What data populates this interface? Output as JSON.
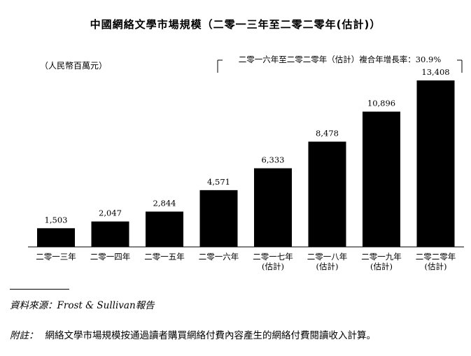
{
  "chart_data": {
    "type": "bar",
    "title": "中國網絡文學市場規模（二零一三年至二零二零年(估計)）",
    "unit_label": "（人民幣百萬元）",
    "annotation": "二零一六年至二零二零年（估計）複合年增長率：30.9%",
    "categories": [
      [
        "二零一三年"
      ],
      [
        "二零一四年"
      ],
      [
        "二零一五年"
      ],
      [
        "二零一六年"
      ],
      [
        "二零一七年",
        "(估計)"
      ],
      [
        "二零一八年",
        "(估計)"
      ],
      [
        "二零一九年",
        "(估計)"
      ],
      [
        "二零二零年",
        "(估計)"
      ]
    ],
    "values": [
      1503,
      2047,
      2844,
      4571,
      6333,
      8478,
      10896,
      13408
    ],
    "value_labels": [
      "1,503",
      "2,047",
      "2,844",
      "4,571",
      "6,333",
      "8,478",
      "10,896",
      "13,408"
    ],
    "ylim": [
      0,
      13408
    ],
    "bar_color": "#000000",
    "grid": false,
    "legend": "none"
  },
  "footnotes": {
    "source": "資料來源：Frost & Sullivan報告",
    "note_label": "附註：",
    "note_text": "網絡文學市場規模按通過讀者購買網絡付費內容產生的網絡付費閱讀收入計算。"
  }
}
